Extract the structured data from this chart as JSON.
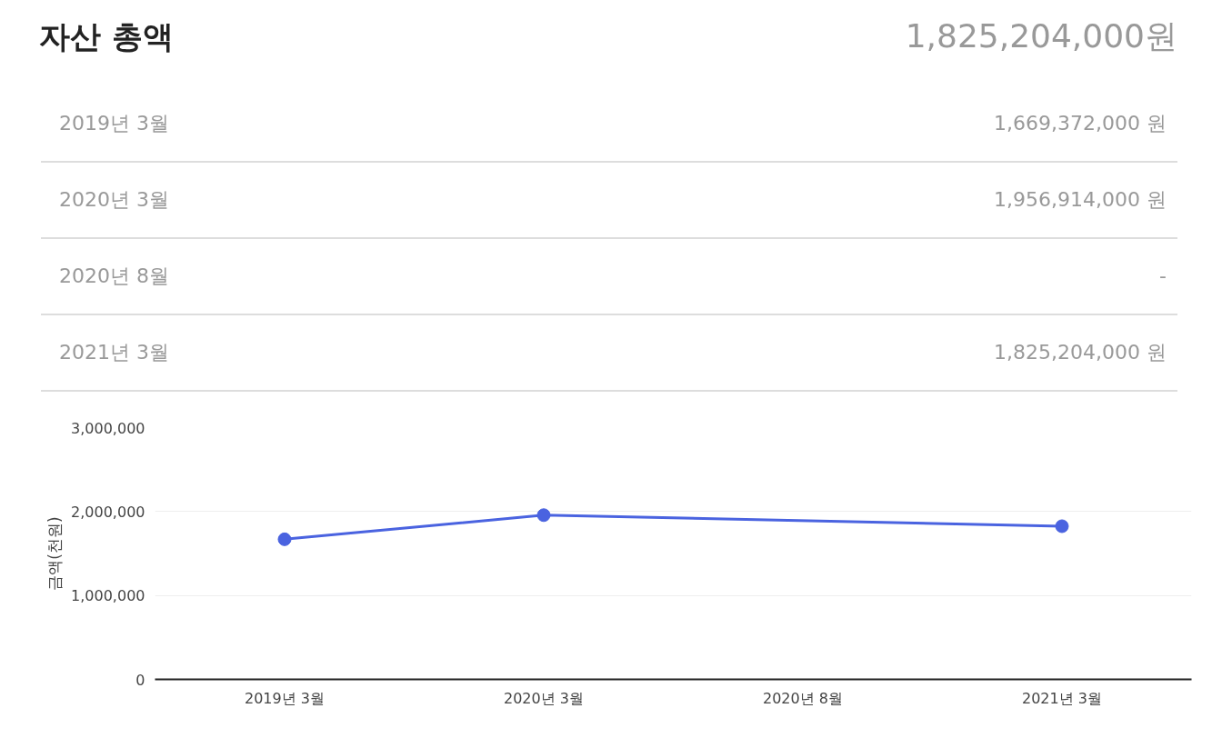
{
  "chart_data": {
    "type": "line",
    "title": "자산 총액",
    "subtitle": "1,825,204,000원",
    "categories": [
      "2019년 3월",
      "2020년 3월",
      "2020년 8월",
      "2021년 3월"
    ],
    "series": [
      {
        "color": "#4a63e0",
        "values": [
          1669372,
          1956914,
          null,
          1825204
        ]
      }
    ],
    "annotations": [
      "1,669,372,000 원",
      "1,956,914,000 원",
      "-",
      "1,825,204,000 원"
    ],
    "ylabel": "금액(천원)",
    "ylim": [
      0,
      3000000
    ],
    "yticks": [
      {
        "value": 0,
        "label": "0"
      },
      {
        "value": 1000000,
        "label": "1,000,000"
      },
      {
        "value": 2000000,
        "label": "2,000,000"
      },
      {
        "value": 3000000,
        "label": "3,000,000"
      }
    ],
    "grid": "y",
    "marker": "circle",
    "line_style": "solid"
  }
}
